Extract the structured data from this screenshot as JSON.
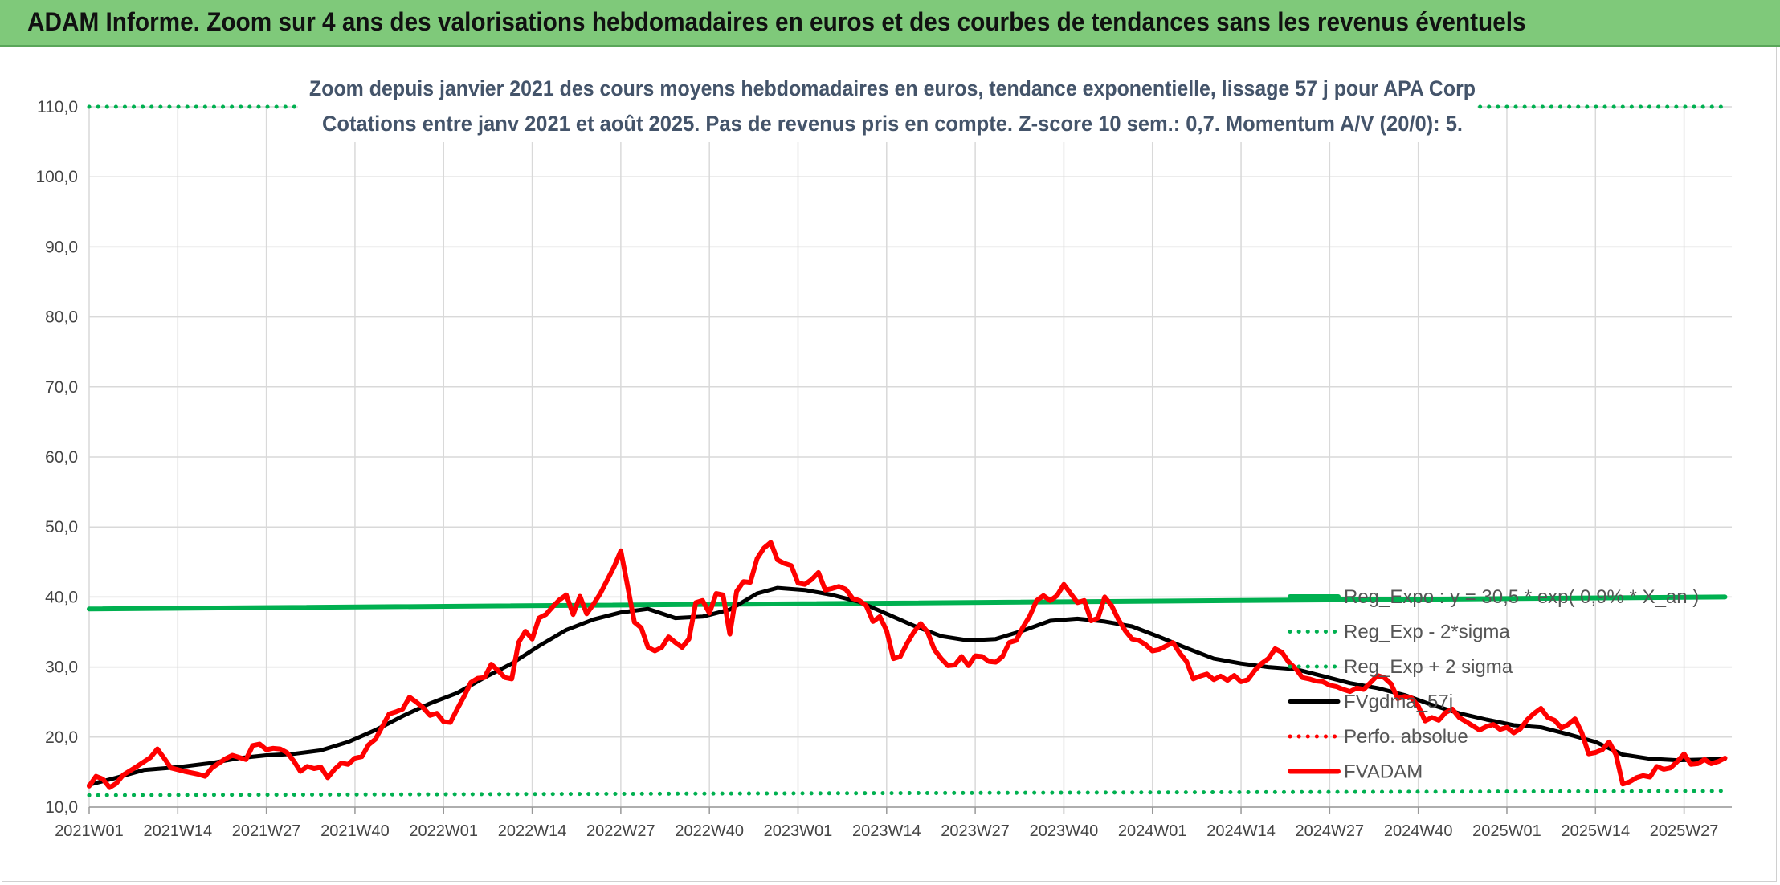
{
  "header": {
    "title": "ADAM Informe. Zoom sur 4 ans des valorisations hebdomadaires en euros et des courbes de tendances sans les revenus éventuels"
  },
  "chart_data": {
    "type": "line",
    "title_lines": [
      "Zoom depuis janvier 2021 des cours moyens hebdomadaires en euros, tendance exponentielle, lissage 57 j pour APA Corp",
      "Cotations entre janv 2021 et août 2025. Pas de revenus pris en compte. Z-score 10 sem.: 0,7. Momentum A/V (20/0): 5."
    ],
    "y_ticks": [
      "10,0",
      "20,0",
      "30,0",
      "40,0",
      "50,0",
      "60,0",
      "70,0",
      "80,0",
      "90,0",
      "100,0",
      "110,0"
    ],
    "ylim": [
      10,
      110
    ],
    "x_ticks": [
      "2021W01",
      "2021W14",
      "2021W27",
      "2021W40",
      "2022W01",
      "2022W14",
      "2022W27",
      "2022W40",
      "2023W01",
      "2023W14",
      "2023W27",
      "2023W40",
      "2024W01",
      "2024W14",
      "2024W27",
      "2024W40",
      "2025W01",
      "2025W14",
      "2025W27"
    ],
    "x_week_index_range": [
      0,
      241
    ],
    "grid": true,
    "legend_position": "right",
    "series": [
      {
        "name": "Reg_Expo : y = 30,5 * exp( 0,9% * X_an )",
        "color": "#00b050",
        "style": "solid-thick",
        "points": [
          [
            0,
            38.3
          ],
          [
            240,
            40.0
          ]
        ]
      },
      {
        "name": "Reg_Exp - 2*sigma",
        "color": "#00b050",
        "style": "dotted",
        "points": [
          [
            0,
            11.7
          ],
          [
            240,
            12.3
          ]
        ]
      },
      {
        "name": "Reg_Exp + 2 sigma",
        "color": "#00b050",
        "style": "dotted",
        "points": [
          [
            0,
            110.0
          ],
          [
            240,
            110.0
          ]
        ]
      },
      {
        "name": "FVgdma_57j",
        "color": "#000000",
        "style": "solid",
        "points": [
          [
            0,
            13.2
          ],
          [
            4,
            14.2
          ],
          [
            8,
            15.3
          ],
          [
            13,
            15.7
          ],
          [
            18,
            16.3
          ],
          [
            22,
            17.0
          ],
          [
            26,
            17.4
          ],
          [
            30,
            17.6
          ],
          [
            34,
            18.1
          ],
          [
            38,
            19.3
          ],
          [
            42,
            21.0
          ],
          [
            46,
            23.0
          ],
          [
            50,
            24.8
          ],
          [
            54,
            26.3
          ],
          [
            58,
            28.5
          ],
          [
            62,
            30.5
          ],
          [
            66,
            33.0
          ],
          [
            70,
            35.3
          ],
          [
            74,
            36.8
          ],
          [
            78,
            37.8
          ],
          [
            82,
            38.3
          ],
          [
            86,
            37.0
          ],
          [
            90,
            37.2
          ],
          [
            94,
            38.2
          ],
          [
            98,
            40.5
          ],
          [
            101,
            41.3
          ],
          [
            105,
            41.0
          ],
          [
            109,
            40.3
          ],
          [
            113,
            39.3
          ],
          [
            117,
            37.6
          ],
          [
            121,
            35.9
          ],
          [
            125,
            34.4
          ],
          [
            129,
            33.8
          ],
          [
            133,
            34.0
          ],
          [
            137,
            35.2
          ],
          [
            141,
            36.6
          ],
          [
            145,
            36.9
          ],
          [
            149,
            36.5
          ],
          [
            153,
            35.8
          ],
          [
            157,
            34.3
          ],
          [
            161,
            32.7
          ],
          [
            165,
            31.2
          ],
          [
            169,
            30.5
          ],
          [
            173,
            30.0
          ],
          [
            177,
            29.7
          ],
          [
            181,
            28.7
          ],
          [
            185,
            27.7
          ],
          [
            189,
            27.0
          ],
          [
            193,
            26.0
          ],
          [
            197,
            24.6
          ],
          [
            201,
            23.4
          ],
          [
            205,
            22.5
          ],
          [
            209,
            21.7
          ],
          [
            213,
            21.4
          ],
          [
            217,
            20.4
          ],
          [
            221,
            19.3
          ],
          [
            225,
            17.5
          ],
          [
            229,
            16.9
          ],
          [
            233,
            16.7
          ],
          [
            237,
            16.8
          ],
          [
            240,
            16.9
          ]
        ]
      },
      {
        "name": "Perfo. absolue",
        "color": "#ff0000",
        "style": "dotted",
        "points": []
      },
      {
        "name": "FVADAM",
        "color": "#ff0000",
        "style": "solid-thick",
        "points": [
          [
            0,
            13.0
          ],
          [
            1,
            14.4
          ],
          [
            2,
            14.0
          ],
          [
            3,
            12.8
          ],
          [
            4,
            13.4
          ],
          [
            5,
            14.6
          ],
          [
            7,
            15.8
          ],
          [
            9,
            17.1
          ],
          [
            10,
            18.3
          ],
          [
            11,
            17.0
          ],
          [
            12,
            15.6
          ],
          [
            14,
            15.1
          ],
          [
            16,
            14.7
          ],
          [
            17,
            14.4
          ],
          [
            18,
            15.6
          ],
          [
            20,
            16.9
          ],
          [
            21,
            17.4
          ],
          [
            22,
            17.1
          ],
          [
            23,
            16.8
          ],
          [
            24,
            18.8
          ],
          [
            25,
            19.0
          ],
          [
            26,
            18.2
          ],
          [
            27,
            18.4
          ],
          [
            28,
            18.3
          ],
          [
            29,
            17.8
          ],
          [
            30,
            16.6
          ],
          [
            31,
            15.1
          ],
          [
            32,
            15.8
          ],
          [
            33,
            15.5
          ],
          [
            34,
            15.7
          ],
          [
            35,
            14.2
          ],
          [
            36,
            15.4
          ],
          [
            37,
            16.3
          ],
          [
            38,
            16.1
          ],
          [
            39,
            17.0
          ],
          [
            40,
            17.2
          ],
          [
            41,
            18.9
          ],
          [
            42,
            19.7
          ],
          [
            43,
            21.5
          ],
          [
            44,
            23.3
          ],
          [
            45,
            23.6
          ],
          [
            46,
            24.0
          ],
          [
            47,
            25.7
          ],
          [
            48,
            25.0
          ],
          [
            49,
            24.2
          ],
          [
            50,
            23.1
          ],
          [
            51,
            23.4
          ],
          [
            52,
            22.2
          ],
          [
            53,
            22.1
          ],
          [
            54,
            24.0
          ],
          [
            55,
            25.8
          ],
          [
            56,
            27.8
          ],
          [
            57,
            28.4
          ],
          [
            58,
            28.5
          ],
          [
            59,
            30.4
          ],
          [
            60,
            29.5
          ],
          [
            61,
            28.5
          ],
          [
            62,
            28.3
          ],
          [
            63,
            33.5
          ],
          [
            64,
            35.1
          ],
          [
            65,
            34.0
          ],
          [
            66,
            37.0
          ],
          [
            67,
            37.5
          ],
          [
            68,
            38.6
          ],
          [
            69,
            39.6
          ],
          [
            70,
            40.3
          ],
          [
            71,
            37.5
          ],
          [
            72,
            40.1
          ],
          [
            73,
            37.6
          ],
          [
            74,
            39.0
          ],
          [
            75,
            40.5
          ],
          [
            77,
            44.3
          ],
          [
            78,
            46.6
          ],
          [
            79,
            41.5
          ],
          [
            80,
            36.4
          ],
          [
            81,
            35.6
          ],
          [
            82,
            32.8
          ],
          [
            83,
            32.3
          ],
          [
            84,
            32.8
          ],
          [
            85,
            34.3
          ],
          [
            86,
            33.5
          ],
          [
            87,
            32.8
          ],
          [
            88,
            34.0
          ],
          [
            89,
            39.2
          ],
          [
            90,
            39.5
          ],
          [
            91,
            37.7
          ],
          [
            92,
            40.5
          ],
          [
            93,
            40.3
          ],
          [
            94,
            34.7
          ],
          [
            95,
            40.8
          ],
          [
            96,
            42.2
          ],
          [
            97,
            42.1
          ],
          [
            98,
            45.5
          ],
          [
            99,
            47.0
          ],
          [
            100,
            47.8
          ],
          [
            101,
            45.3
          ],
          [
            102,
            44.8
          ],
          [
            103,
            44.5
          ],
          [
            104,
            42.0
          ],
          [
            105,
            41.8
          ],
          [
            106,
            42.5
          ],
          [
            107,
            43.5
          ],
          [
            108,
            41.0
          ],
          [
            109,
            41.2
          ],
          [
            110,
            41.5
          ],
          [
            111,
            41.1
          ],
          [
            112,
            39.8
          ],
          [
            113,
            39.5
          ],
          [
            114,
            38.8
          ],
          [
            115,
            36.5
          ],
          [
            116,
            37.2
          ],
          [
            117,
            35.2
          ],
          [
            118,
            31.2
          ],
          [
            119,
            31.5
          ],
          [
            120,
            33.4
          ],
          [
            121,
            35.0
          ],
          [
            122,
            36.2
          ],
          [
            123,
            35.0
          ],
          [
            124,
            32.5
          ],
          [
            125,
            31.2
          ],
          [
            126,
            30.2
          ],
          [
            127,
            30.3
          ],
          [
            128,
            31.5
          ],
          [
            129,
            30.2
          ],
          [
            130,
            31.6
          ],
          [
            131,
            31.5
          ],
          [
            132,
            30.8
          ],
          [
            133,
            30.7
          ],
          [
            134,
            31.5
          ],
          [
            135,
            33.5
          ],
          [
            136,
            33.8
          ],
          [
            137,
            35.7
          ],
          [
            138,
            37.3
          ],
          [
            139,
            39.5
          ],
          [
            140,
            40.2
          ],
          [
            141,
            39.5
          ],
          [
            142,
            40.2
          ],
          [
            143,
            41.8
          ],
          [
            144,
            40.5
          ],
          [
            145,
            39.2
          ],
          [
            146,
            39.5
          ],
          [
            147,
            36.6
          ],
          [
            148,
            37.0
          ],
          [
            149,
            40.0
          ],
          [
            150,
            38.8
          ],
          [
            151,
            36.8
          ],
          [
            152,
            35.2
          ],
          [
            153,
            34.0
          ],
          [
            154,
            33.8
          ],
          [
            155,
            33.2
          ],
          [
            156,
            32.3
          ],
          [
            157,
            32.5
          ],
          [
            158,
            33.0
          ],
          [
            159,
            33.5
          ],
          [
            160,
            32.0
          ],
          [
            161,
            30.8
          ],
          [
            162,
            28.3
          ],
          [
            163,
            28.7
          ],
          [
            164,
            29.0
          ],
          [
            165,
            28.2
          ],
          [
            166,
            28.7
          ],
          [
            167,
            28.1
          ],
          [
            168,
            28.8
          ],
          [
            169,
            27.9
          ],
          [
            170,
            28.2
          ],
          [
            171,
            29.5
          ],
          [
            172,
            30.5
          ],
          [
            173,
            31.2
          ],
          [
            174,
            32.6
          ],
          [
            175,
            32.1
          ],
          [
            176,
            30.7
          ],
          [
            177,
            29.8
          ],
          [
            178,
            28.5
          ],
          [
            179,
            28.3
          ],
          [
            180,
            28.0
          ],
          [
            181,
            27.9
          ],
          [
            182,
            27.4
          ],
          [
            183,
            27.2
          ],
          [
            184,
            26.8
          ],
          [
            185,
            26.5
          ],
          [
            186,
            27.0
          ],
          [
            187,
            26.8
          ],
          [
            188,
            27.8
          ],
          [
            189,
            28.8
          ],
          [
            190,
            28.5
          ],
          [
            191,
            27.6
          ],
          [
            192,
            25.5
          ],
          [
            193,
            25.8
          ],
          [
            194,
            25.6
          ],
          [
            195,
            24.4
          ],
          [
            196,
            22.3
          ],
          [
            197,
            22.8
          ],
          [
            198,
            22.4
          ],
          [
            199,
            23.5
          ],
          [
            200,
            24.0
          ],
          [
            201,
            22.8
          ],
          [
            202,
            22.2
          ],
          [
            203,
            21.6
          ],
          [
            204,
            21.0
          ],
          [
            205,
            21.5
          ],
          [
            206,
            21.8
          ],
          [
            207,
            21.1
          ],
          [
            208,
            21.4
          ],
          [
            209,
            20.6
          ],
          [
            210,
            21.2
          ],
          [
            211,
            22.5
          ],
          [
            212,
            23.4
          ],
          [
            213,
            24.1
          ],
          [
            214,
            22.8
          ],
          [
            215,
            22.4
          ],
          [
            216,
            21.3
          ],
          [
            217,
            21.8
          ],
          [
            218,
            22.6
          ],
          [
            219,
            20.6
          ],
          [
            220,
            17.6
          ],
          [
            221,
            17.8
          ],
          [
            222,
            18.2
          ],
          [
            223,
            19.3
          ],
          [
            224,
            17.5
          ],
          [
            225,
            13.3
          ],
          [
            226,
            13.6
          ],
          [
            227,
            14.2
          ],
          [
            228,
            14.5
          ],
          [
            229,
            14.3
          ],
          [
            230,
            15.8
          ],
          [
            231,
            15.4
          ],
          [
            232,
            15.6
          ],
          [
            233,
            16.5
          ],
          [
            234,
            17.6
          ],
          [
            235,
            16.1
          ],
          [
            236,
            16.2
          ],
          [
            237,
            16.8
          ],
          [
            238,
            16.2
          ],
          [
            239,
            16.5
          ],
          [
            240,
            17.0
          ]
        ]
      }
    ]
  }
}
